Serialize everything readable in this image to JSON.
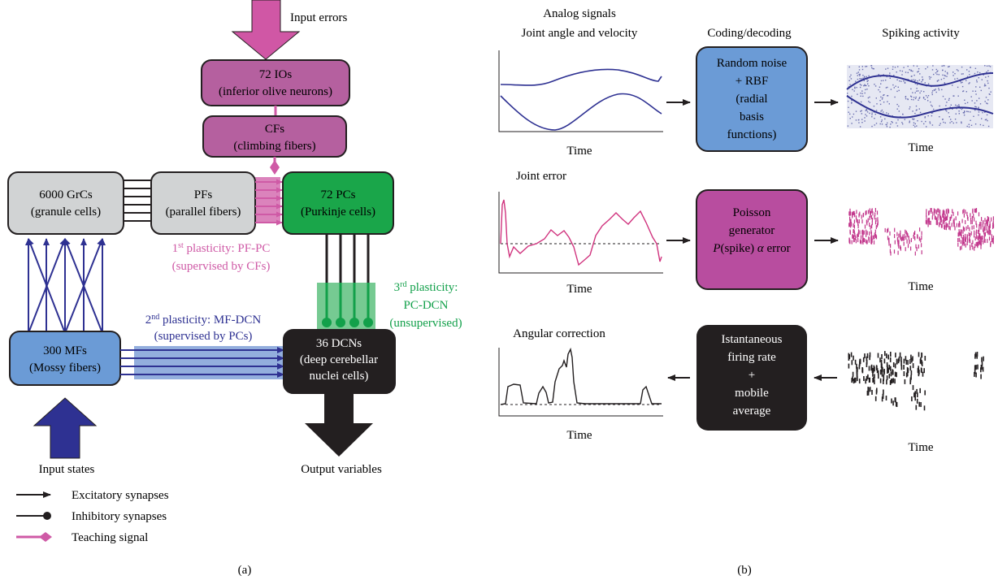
{
  "colors": {
    "io": "#b5609f",
    "io_arrow": "#d057a5",
    "gray": "#d1d3d4",
    "pc": "#1aa64a",
    "mf": "#6b9bd6",
    "dcn": "#231f20",
    "mf_syn": "#2e3192",
    "pf_pc": "#cf5aa6",
    "pc_dcn": "#12a04a",
    "mf_dcn": "#6f93d1",
    "signal_blue": "#2e3192",
    "signal_pink": "#d0337e",
    "poisson": "#b84d9f",
    "decode": "#231f20"
  },
  "panel_a": {
    "input_errors": "Input errors",
    "io": {
      "l1": "72 IOs",
      "l2": "(inferior olive neurons)"
    },
    "cf": {
      "l1": "CFs",
      "l2": "(climbing fibers)"
    },
    "grc": {
      "l1": "6000 GrCs",
      "l2": "(granule cells)"
    },
    "pf": {
      "l1": "PFs",
      "l2": "(parallel fibers)"
    },
    "pc": {
      "l1": "72 PCs",
      "l2": "(Purkinje cells)"
    },
    "mf": {
      "l1": "300 MFs",
      "l2": "(Mossy fibers)"
    },
    "dcn": {
      "l1": "36 DCNs",
      "l2": "(deep cerebellar",
      "l3": "nuclei cells)"
    },
    "plast1": {
      "num": "1",
      "sup": "st",
      "l1": " plasticity: PF-PC",
      "l2": "(supervised by CFs)"
    },
    "plast2": {
      "num": "2",
      "sup": "nd",
      "l1": " plasticity: MF-DCN",
      "l2": "(supervised by PCs)"
    },
    "plast3": {
      "num": "3",
      "sup": "rd",
      "l1": " plasticity:",
      "l2": "PC-DCN",
      "l3": "(unsupervised)"
    },
    "input_states": "Input states",
    "output_variables": "Output variables",
    "legend": [
      "Excitatory synapses",
      "Inhibitory synapses",
      "Teaching signal"
    ],
    "label": "(a)"
  },
  "panel_b": {
    "col1_l1": "Analog signals",
    "col1_l2": "Joint angle and velocity",
    "col2": "Coding/decoding",
    "col3": "Spiking activity",
    "row1_box": [
      "Random noise",
      "+ RBF",
      "(radial",
      "basis",
      "functions)"
    ],
    "row2_title": "Joint error",
    "row2_box": [
      "Poisson",
      "generator"
    ],
    "row2_formula": {
      "p": "P",
      "rest": "(spike) ",
      "alpha": "α",
      "err": " error"
    },
    "row3_title": "Angular correction",
    "row3_box": [
      "Istantaneous",
      "firing rate",
      "+",
      "mobile",
      "average"
    ],
    "time": "Time",
    "label": "(b)"
  }
}
